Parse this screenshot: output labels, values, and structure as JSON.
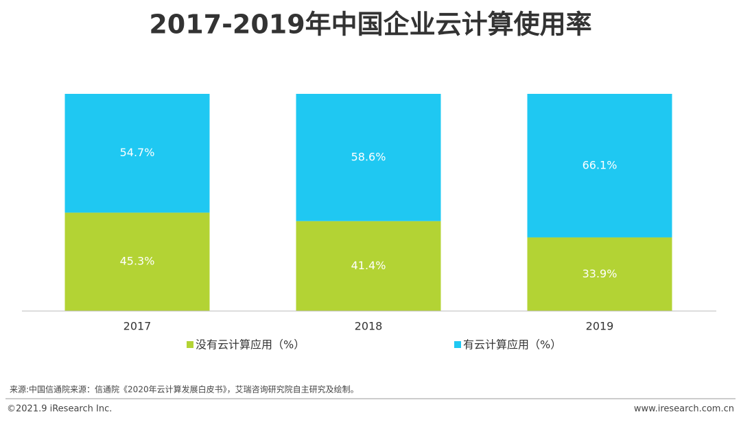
{
  "chart_data": {
    "type": "bar",
    "stacked": true,
    "title": "2017-2019年中国企业云计算使用率",
    "categories": [
      "2017",
      "2018",
      "2019"
    ],
    "series": [
      {
        "name": "没有云计算应用（%）",
        "color": "#b3d334",
        "values": [
          45.3,
          41.4,
          33.9
        ],
        "value_labels": [
          "45.3%",
          "41.4%",
          "33.9%"
        ]
      },
      {
        "name": "有云计算应用（%）",
        "color": "#1fc8f2",
        "values": [
          54.7,
          58.6,
          66.1
        ],
        "value_labels": [
          "54.7%",
          "58.6%",
          "66.1%"
        ]
      }
    ],
    "ylim": [
      0,
      100
    ]
  },
  "footer": {
    "source": "来源:中国信通院来源：信通院《2020年云计算发展白皮书》，艾瑞咨询研究院自主研究及绘制。",
    "copyright": "©2021.9 iResearch Inc.",
    "website": "www.iresearch.com.cn"
  }
}
